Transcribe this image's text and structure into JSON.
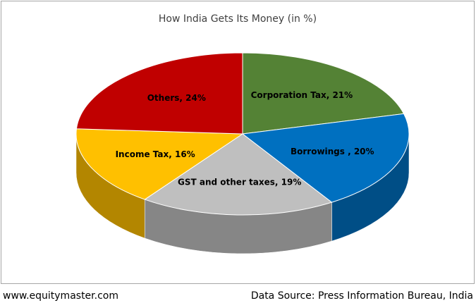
{
  "chart_data": {
    "type": "pie3d",
    "title": "How India Gets Its Money (in %)",
    "values": [
      21,
      20,
      19,
      16,
      24
    ],
    "value_labels": [
      "Corporation Tax, 21%",
      "Borrowings , 20%",
      "GST and other taxes, 19%",
      "Income Tax, 16%",
      "Others, 24%"
    ],
    "colors": [
      "#548235",
      "#0070c0",
      "#bfbfbf",
      "#ffc000",
      "#c00000"
    ]
  },
  "footer": {
    "left": "www.equitymaster.com",
    "right": "Data Source: Press Information Bureau, India"
  }
}
